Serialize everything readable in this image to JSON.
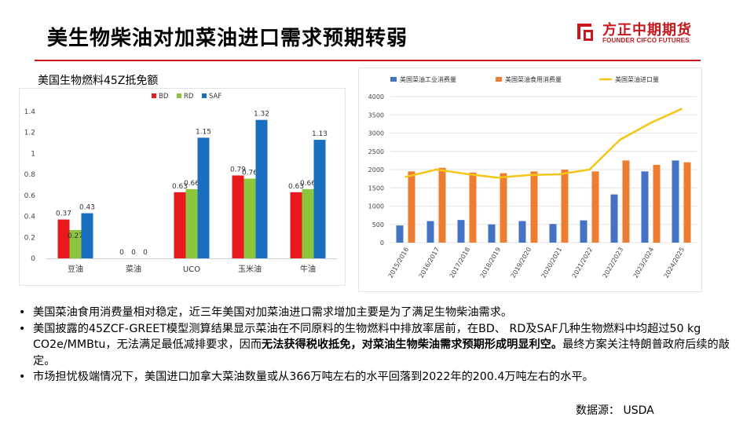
{
  "slide": {
    "title": "美生物柴油对加菜油进口需求预期转弱",
    "logo_cn": "方正中期期货",
    "logo_en": "FOUNDER CIFCO FUTURES",
    "accent_color": "#c8161d"
  },
  "chart_data": [
    {
      "type": "bar",
      "title": "美国生物燃料45Z抵免额",
      "categories": [
        "豆油",
        "菜油",
        "UCO",
        "玉米油",
        "牛油"
      ],
      "series": [
        {
          "name": "BD",
          "color": "#e8191c",
          "values": [
            0.37,
            0,
            0.63,
            0.79,
            0.63
          ]
        },
        {
          "name": "RD",
          "color": "#8cc63f",
          "values": [
            0.27,
            0,
            0.66,
            0.76,
            0.66
          ]
        },
        {
          "name": "SAF",
          "color": "#1a6ebf",
          "values": [
            0.43,
            0,
            1.15,
            1.32,
            1.13
          ]
        }
      ],
      "ylim": [
        0,
        1.4
      ],
      "yticks": [
        "0",
        "0.2",
        "0.4",
        "0.6",
        "0.8",
        "1",
        "1.2",
        "1.4"
      ],
      "legend": "top",
      "grid": false
    },
    {
      "type": "bar+line",
      "categories": [
        "2015/2016",
        "2016/2017",
        "2017/2018",
        "2018/2019",
        "2019/2020",
        "2020/2021",
        "2021/2022",
        "2022/2023",
        "2023/2024",
        "2024/2025"
      ],
      "series": [
        {
          "name": "美国菜油工业消费量",
          "kind": "bar",
          "color": "#4472c4",
          "values": [
            470,
            590,
            620,
            500,
            590,
            510,
            610,
            1320,
            1950,
            2250
          ]
        },
        {
          "name": "美国菜油食用消费量",
          "kind": "bar",
          "color": "#ed7d31",
          "values": [
            1950,
            2050,
            1920,
            1900,
            1950,
            2000,
            1950,
            2250,
            2130,
            2200
          ]
        },
        {
          "name": "美国菜油进口量",
          "kind": "line",
          "color": "#f5c518",
          "values": [
            1800,
            2000,
            1880,
            1780,
            1850,
            1870,
            2000,
            2820,
            3280,
            3660
          ]
        }
      ],
      "ylim": [
        0,
        4000
      ],
      "yticks": [
        "0",
        "500",
        "1000",
        "1500",
        "2000",
        "2500",
        "3000",
        "3500",
        "4000"
      ],
      "legend": "top",
      "grid": true
    }
  ],
  "bullets": [
    {
      "text": "美国菜油食用消费量相对稳定，近三年美国对加菜油进口需求增加主要是为了满足生物柴油需求。"
    },
    {
      "text_a": "美国披露的45ZCF-GREET模型测算结果显示菜油在不同原料的生物燃料中排放率居前，在BD、 RD及SAF几种生物燃料中均超过50  kg CO2e/MMBtu，无法满足最低减排要求，因而",
      "text_b": "无法获得税收抵免，对菜油生物柴油需求预期形成明显利空。",
      "text_c": "最终方案关注特朗普政府后续的敲定。"
    },
    {
      "text": "市场担忧极端情况下，美国进口加拿大菜油数量或从366万吨左右的水平回落到2022年的200.4万吨左右的水平。"
    }
  ],
  "bullet_symbol": "•",
  "source": "数据源：  USDA"
}
